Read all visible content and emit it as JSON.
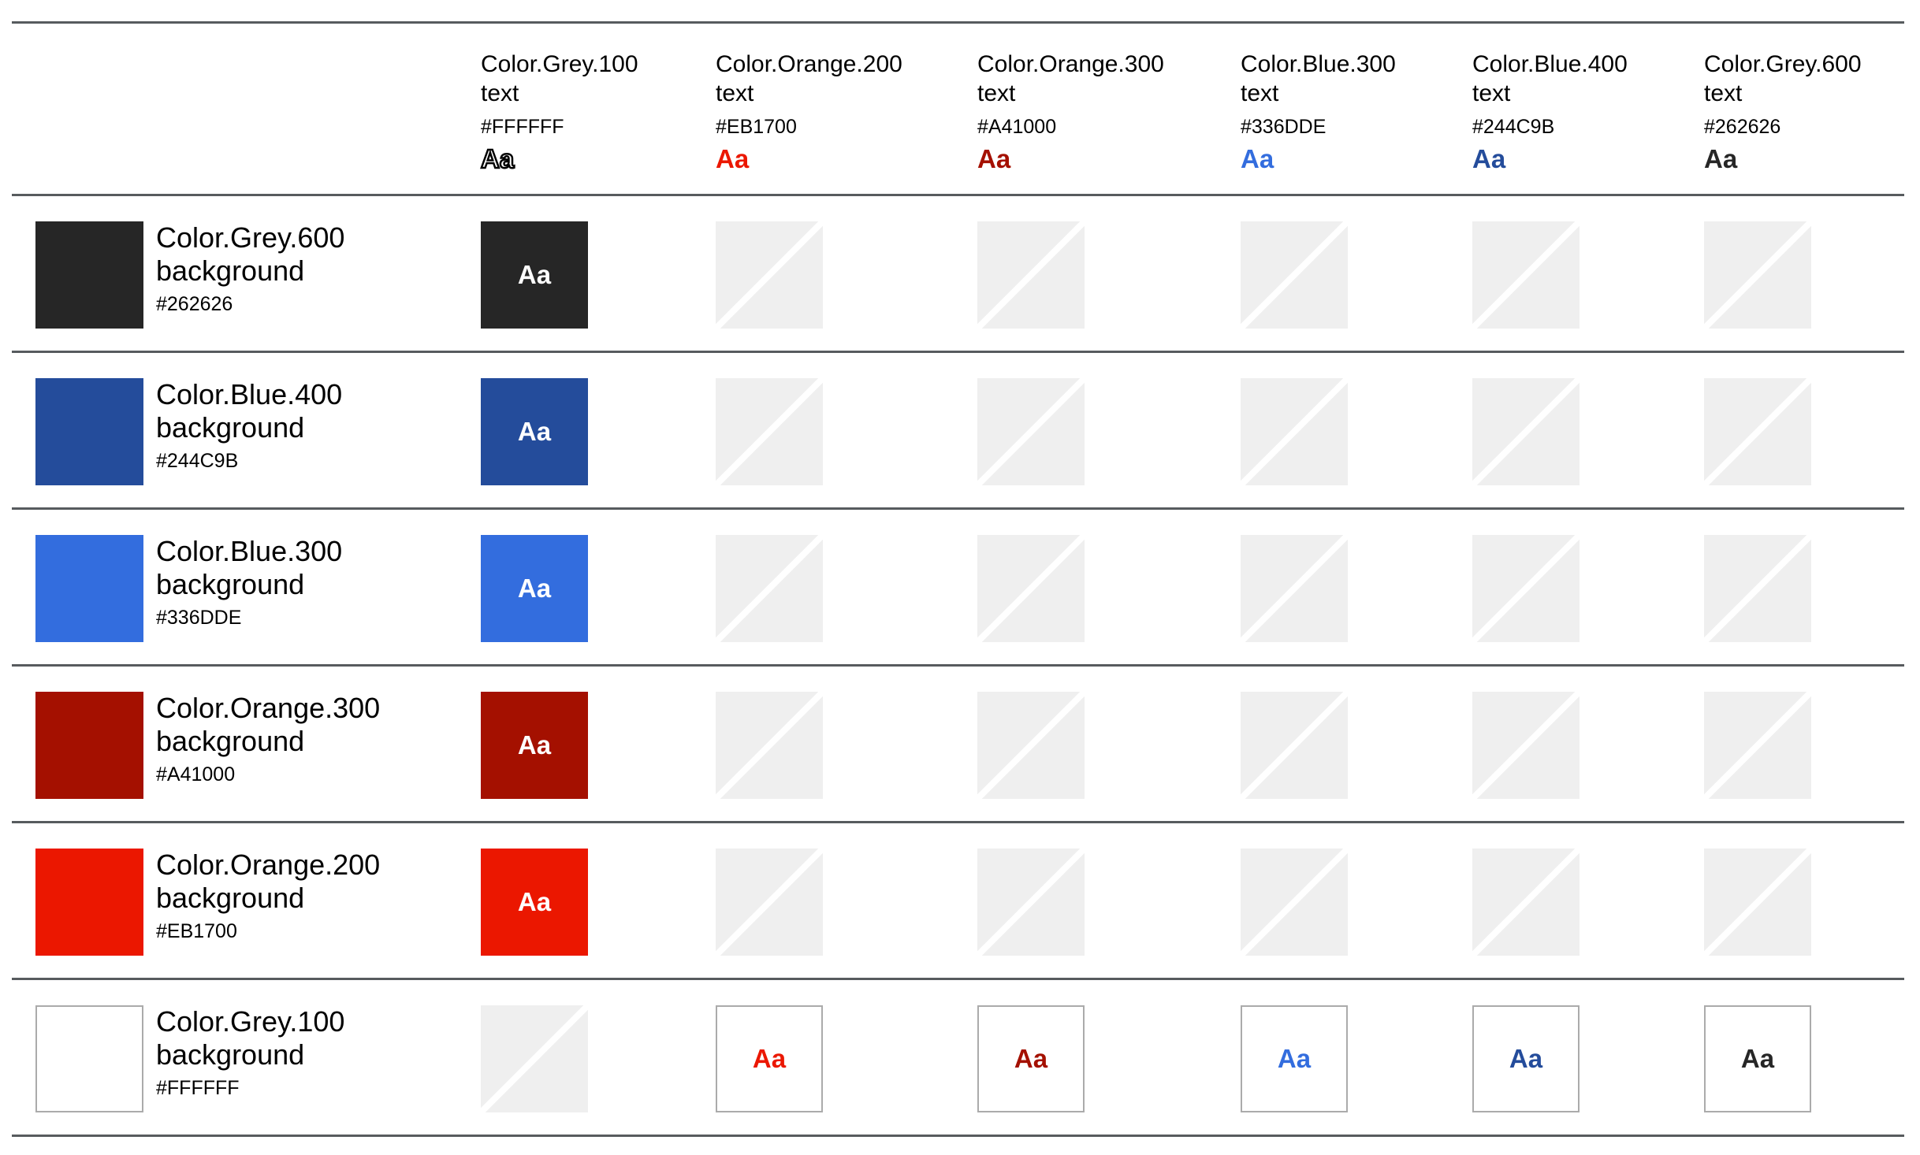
{
  "legend": {
    "text_role": "text",
    "background_role": "background",
    "sample": "Aa"
  },
  "columns": [
    {
      "label": "Color.Grey.100",
      "hex": "#FFFFFF",
      "outlined": true
    },
    {
      "label": "Color.Orange.200",
      "hex": "#EB1700",
      "outlined": false
    },
    {
      "label": "Color.Orange.300",
      "hex": "#A41000",
      "outlined": false
    },
    {
      "label": "Color.Blue.300",
      "hex": "#336DDE",
      "outlined": false
    },
    {
      "label": "Color.Blue.400",
      "hex": "#244C9B",
      "outlined": false
    },
    {
      "label": "Color.Grey.600",
      "hex": "#262626",
      "outlined": false
    }
  ],
  "rows": [
    {
      "label": "Color.Grey.600",
      "hex": "#262626",
      "bordered": false,
      "cells": [
        "filled",
        "na",
        "na",
        "na",
        "na",
        "na"
      ]
    },
    {
      "label": "Color.Blue.400",
      "hex": "#244C9B",
      "bordered": false,
      "cells": [
        "filled",
        "na",
        "na",
        "na",
        "na",
        "na"
      ]
    },
    {
      "label": "Color.Blue.300",
      "hex": "#336DDE",
      "bordered": false,
      "cells": [
        "filled",
        "na",
        "na",
        "na",
        "na",
        "na"
      ]
    },
    {
      "label": "Color.Orange.300",
      "hex": "#A41000",
      "bordered": false,
      "cells": [
        "filled",
        "na",
        "na",
        "na",
        "na",
        "na"
      ]
    },
    {
      "label": "Color.Orange.200",
      "hex": "#EB1700",
      "bordered": false,
      "cells": [
        "filled",
        "na",
        "na",
        "na",
        "na",
        "na"
      ]
    },
    {
      "label": "Color.Grey.100",
      "hex": "#FFFFFF",
      "bordered": true,
      "cells": [
        "na",
        "filled",
        "filled",
        "filled",
        "filled",
        "filled"
      ]
    }
  ],
  "colors": {
    "rule": "#575B5E",
    "na_fill": "#EFEFEF",
    "na_stripe": "#FFFFFF",
    "cell_border": "#ABABAB"
  }
}
